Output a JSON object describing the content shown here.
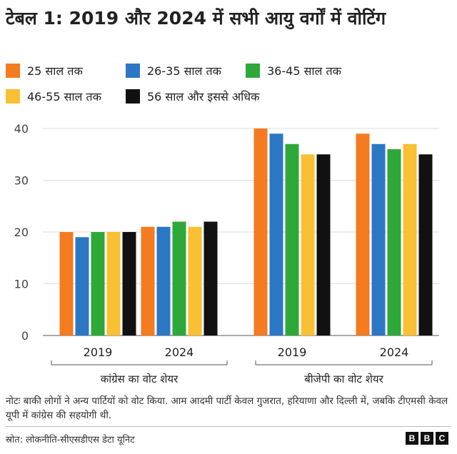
{
  "title": "टेबल 1: 2019 और 2024 में सभी आयु वर्गों में वोटिंग",
  "colors": {
    "25 साल तक": "#f47b20",
    "26-35 साल तक": "#2c77c4",
    "36-45 साल तक": "#2fa83a",
    "46-55 साल तक": "#f9c034",
    "56 साल और इससे अधिक": "#111111"
  },
  "chart_data": {
    "type": "bar",
    "ylim": [
      0,
      40
    ],
    "yticks": [
      0,
      10,
      20,
      30,
      40
    ],
    "grid": true,
    "legend_position": "top",
    "categories": [
      "2019",
      "2024",
      "2019",
      "2024"
    ],
    "groups": [
      {
        "label": "कांग्रेस का वोट शेयर",
        "categories": [
          "2019",
          "2024"
        ]
      },
      {
        "label": "बीजेपी का वोट शेयर",
        "categories": [
          "2019",
          "2024"
        ]
      }
    ],
    "series": [
      {
        "name": "25 साल तक",
        "values": [
          20,
          21,
          40,
          39
        ]
      },
      {
        "name": "26-35 साल तक",
        "values": [
          19,
          21,
          39,
          37
        ]
      },
      {
        "name": "36-45 साल तक",
        "values": [
          20,
          22,
          37,
          36
        ]
      },
      {
        "name": "46-55 साल तक",
        "values": [
          20,
          21,
          35,
          37
        ]
      },
      {
        "name": "56 साल और इससे अधिक",
        "values": [
          20,
          22,
          35,
          35
        ]
      }
    ]
  },
  "note": "नोटः बाकी लोगों ने अन्य पार्टियों को वोट किया. आम आदमी पार्टी केवल गुजरात, हरियाणा और दिल्ली में, जबकि टीएमसी केवल यूपी में कांग्रेस की सहयोगी थी.",
  "source": "स्रोत: लोकनीति-सीएसडीएस डेटा यूनिट",
  "logo": {
    "letters": [
      "B",
      "B",
      "C"
    ]
  }
}
